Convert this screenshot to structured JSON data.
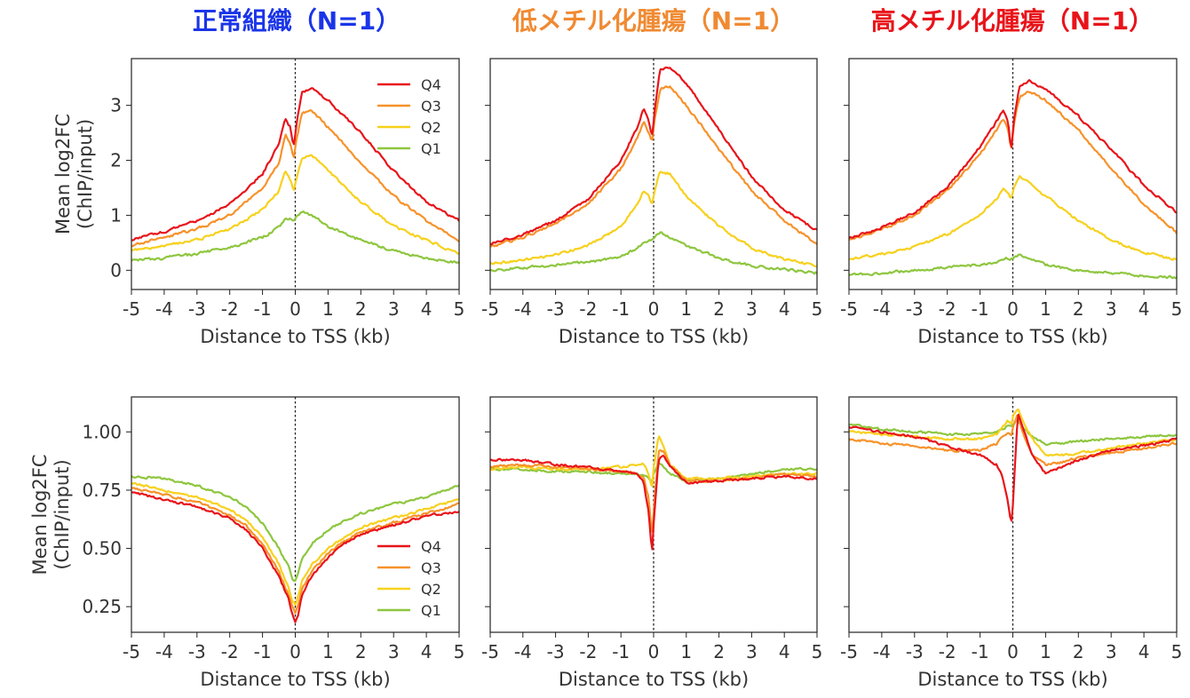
{
  "column_titles": [
    {
      "text": "正常組織（N=1）",
      "color": "#1a35e8"
    },
    {
      "text": "低メチル化腫瘍（N=1）",
      "color": "#f08a32"
    },
    {
      "text": "高メチル化腫瘍（N=1）",
      "color": "#e8141a"
    }
  ],
  "series_colors": {
    "Q4": "#e8141a",
    "Q3": "#f7922a",
    "Q2": "#f7d11e",
    "Q1": "#8ec63f"
  },
  "chart_data": [
    {
      "type": "line",
      "row": "top",
      "column": "正常組織（N=1）",
      "xlabel": "Distance to TSS (kb)",
      "ylabel": [
        "Mean log2FC",
        "(ChIP/input)"
      ],
      "xlim": [
        -5,
        5
      ],
      "ylim": [
        -0.35,
        3.85
      ],
      "xticks": [
        "-5",
        "-4",
        "-3",
        "-2",
        "-1",
        "0",
        "1",
        "2",
        "3",
        "4",
        "5"
      ],
      "yticks": [
        "0",
        "1",
        "2",
        "3"
      ],
      "legend": "top-right",
      "grid": false,
      "tss_line": true,
      "x": [
        -5,
        -4,
        -3,
        -2,
        -1,
        -0.5,
        -0.3,
        -0.15,
        -0.05,
        0.05,
        0.2,
        0.5,
        1,
        2,
        3,
        4,
        5
      ],
      "series": [
        {
          "name": "Q4",
          "values": [
            0.55,
            0.7,
            0.9,
            1.2,
            1.75,
            2.3,
            2.75,
            2.6,
            2.25,
            2.7,
            3.25,
            3.3,
            3.1,
            2.5,
            1.8,
            1.25,
            0.9
          ]
        },
        {
          "name": "Q3",
          "values": [
            0.45,
            0.6,
            0.75,
            1.0,
            1.5,
            1.95,
            2.45,
            2.3,
            2.05,
            2.4,
            2.85,
            2.92,
            2.6,
            1.95,
            1.35,
            0.9,
            0.52
          ]
        },
        {
          "name": "Q2",
          "values": [
            0.35,
            0.45,
            0.55,
            0.75,
            1.1,
            1.45,
            1.8,
            1.65,
            1.45,
            1.7,
            2.05,
            2.1,
            1.8,
            1.25,
            0.8,
            0.55,
            0.3
          ]
        },
        {
          "name": "Q1",
          "values": [
            0.18,
            0.22,
            0.3,
            0.42,
            0.6,
            0.78,
            0.92,
            0.95,
            0.9,
            1.0,
            1.08,
            1.0,
            0.8,
            0.55,
            0.35,
            0.22,
            0.13
          ]
        }
      ]
    },
    {
      "type": "line",
      "row": "top",
      "column": "低メチル化腫瘍（N=1）",
      "xlabel": "Distance to TSS (kb)",
      "ylabel": [],
      "xlim": [
        -5,
        5
      ],
      "ylim": [
        -0.35,
        3.85
      ],
      "xticks": [
        "-5",
        "-4",
        "-3",
        "-2",
        "-1",
        "0",
        "1",
        "2",
        "3",
        "4",
        "5"
      ],
      "legend": "none",
      "grid": false,
      "tss_line": true,
      "x": [
        -5,
        -4,
        -3,
        -2,
        -1,
        -0.5,
        -0.3,
        -0.15,
        -0.05,
        0.05,
        0.2,
        0.5,
        1,
        2,
        3,
        4,
        5
      ],
      "series": [
        {
          "name": "Q4",
          "values": [
            0.48,
            0.65,
            0.9,
            1.3,
            2.0,
            2.6,
            2.95,
            2.7,
            2.45,
            3.0,
            3.65,
            3.7,
            3.4,
            2.55,
            1.7,
            1.1,
            0.72
          ]
        },
        {
          "name": "Q3",
          "values": [
            0.42,
            0.6,
            0.85,
            1.2,
            1.85,
            2.4,
            2.7,
            2.5,
            2.35,
            2.8,
            3.3,
            3.35,
            3.0,
            2.2,
            1.45,
            0.9,
            0.48
          ]
        },
        {
          "name": "Q2",
          "values": [
            0.12,
            0.18,
            0.28,
            0.45,
            0.8,
            1.2,
            1.45,
            1.35,
            1.2,
            1.5,
            1.8,
            1.75,
            1.35,
            0.8,
            0.4,
            0.2,
            0.08
          ]
        },
        {
          "name": "Q1",
          "values": [
            0.0,
            0.05,
            0.1,
            0.15,
            0.25,
            0.4,
            0.5,
            0.55,
            0.55,
            0.62,
            0.68,
            0.6,
            0.45,
            0.22,
            0.08,
            0.02,
            -0.05
          ]
        }
      ]
    },
    {
      "type": "line",
      "row": "top",
      "column": "高メチル化腫瘍（N=1）",
      "xlabel": "Distance to TSS (kb)",
      "ylabel": [],
      "xlim": [
        -5,
        5
      ],
      "ylim": [
        -0.35,
        3.85
      ],
      "xticks": [
        "-5",
        "-4",
        "-3",
        "-2",
        "-1",
        "0",
        "1",
        "2",
        "3",
        "4",
        "5"
      ],
      "legend": "none",
      "grid": false,
      "tss_line": true,
      "x": [
        -5,
        -4,
        -3,
        -2,
        -1,
        -0.5,
        -0.3,
        -0.15,
        -0.05,
        0.05,
        0.2,
        0.5,
        1,
        2,
        3,
        4,
        5
      ],
      "series": [
        {
          "name": "Q4",
          "values": [
            0.58,
            0.78,
            1.05,
            1.5,
            2.25,
            2.7,
            2.9,
            2.7,
            2.2,
            2.8,
            3.35,
            3.45,
            3.3,
            2.8,
            2.2,
            1.55,
            1.05
          ]
        },
        {
          "name": "Q3",
          "values": [
            0.55,
            0.75,
            1.0,
            1.45,
            2.1,
            2.55,
            2.75,
            2.6,
            2.2,
            2.7,
            3.15,
            3.25,
            3.1,
            2.55,
            1.85,
            1.2,
            0.68
          ]
        },
        {
          "name": "Q2",
          "values": [
            0.2,
            0.3,
            0.42,
            0.65,
            1.0,
            1.3,
            1.48,
            1.4,
            1.3,
            1.55,
            1.7,
            1.6,
            1.35,
            0.9,
            0.55,
            0.32,
            0.2
          ]
        },
        {
          "name": "Q1",
          "values": [
            -0.08,
            -0.05,
            0.0,
            0.05,
            0.1,
            0.15,
            0.2,
            0.22,
            0.2,
            0.25,
            0.27,
            0.2,
            0.1,
            0.0,
            -0.05,
            -0.1,
            -0.13
          ]
        }
      ]
    },
    {
      "type": "line",
      "row": "bottom",
      "column": "正常組織（N=1）",
      "xlabel": "Distance to TSS (kb)",
      "ylabel": [
        "Mean log2FC",
        "(ChIP/input)"
      ],
      "xlim": [
        -5,
        5
      ],
      "ylim": [
        0.14,
        1.15
      ],
      "xticks": [
        "-5",
        "-4",
        "-3",
        "-2",
        "-1",
        "0",
        "1",
        "2",
        "3",
        "4",
        "5"
      ],
      "yticks": [
        "0.25",
        "0.50",
        "0.75",
        "1.00"
      ],
      "legend": "bottom-right",
      "grid": false,
      "tss_line": true,
      "x": [
        -5,
        -4,
        -3,
        -2,
        -1.5,
        -1,
        -0.5,
        -0.2,
        -0.1,
        0,
        0.1,
        0.2,
        0.5,
        1,
        1.5,
        2,
        3,
        4,
        5
      ],
      "series": [
        {
          "name": "Q4",
          "values": [
            0.74,
            0.71,
            0.68,
            0.63,
            0.58,
            0.5,
            0.38,
            0.28,
            0.22,
            0.18,
            0.22,
            0.3,
            0.38,
            0.46,
            0.52,
            0.56,
            0.6,
            0.64,
            0.66
          ]
        },
        {
          "name": "Q3",
          "values": [
            0.76,
            0.73,
            0.7,
            0.64,
            0.6,
            0.52,
            0.4,
            0.3,
            0.25,
            0.22,
            0.26,
            0.32,
            0.4,
            0.48,
            0.53,
            0.57,
            0.61,
            0.65,
            0.69
          ]
        },
        {
          "name": "Q2",
          "values": [
            0.78,
            0.75,
            0.72,
            0.67,
            0.62,
            0.55,
            0.43,
            0.33,
            0.28,
            0.26,
            0.3,
            0.36,
            0.43,
            0.5,
            0.55,
            0.59,
            0.63,
            0.67,
            0.71
          ]
        },
        {
          "name": "Q1",
          "values": [
            0.81,
            0.8,
            0.77,
            0.72,
            0.68,
            0.61,
            0.5,
            0.42,
            0.37,
            0.36,
            0.4,
            0.45,
            0.52,
            0.58,
            0.62,
            0.65,
            0.69,
            0.72,
            0.77
          ]
        }
      ]
    },
    {
      "type": "line",
      "row": "bottom",
      "column": "低メチル化腫瘍（N=1）",
      "xlabel": "Distance to TSS (kb)",
      "ylabel": [],
      "xlim": [
        -5,
        5
      ],
      "ylim": [
        0.14,
        1.15
      ],
      "xticks": [
        "-5",
        "-4",
        "-3",
        "-2",
        "-1",
        "0",
        "1",
        "2",
        "3",
        "4",
        "5"
      ],
      "legend": "none",
      "grid": false,
      "tss_line": true,
      "x": [
        -5,
        -4,
        -3,
        -2,
        -1,
        -0.5,
        -0.3,
        -0.15,
        -0.05,
        0,
        0.15,
        0.3,
        0.5,
        1,
        2,
        3,
        4,
        5
      ],
      "series": [
        {
          "name": "Q4",
          "values": [
            0.88,
            0.88,
            0.86,
            0.85,
            0.83,
            0.82,
            0.78,
            0.65,
            0.47,
            0.6,
            0.88,
            0.9,
            0.85,
            0.78,
            0.79,
            0.8,
            0.81,
            0.8
          ]
        },
        {
          "name": "Q3",
          "values": [
            0.85,
            0.86,
            0.85,
            0.84,
            0.83,
            0.82,
            0.8,
            0.72,
            0.55,
            0.65,
            0.92,
            0.92,
            0.86,
            0.79,
            0.79,
            0.8,
            0.82,
            0.81
          ]
        },
        {
          "name": "Q2",
          "values": [
            0.84,
            0.85,
            0.84,
            0.84,
            0.85,
            0.86,
            0.86,
            0.82,
            0.75,
            0.85,
            0.98,
            0.94,
            0.86,
            0.8,
            0.8,
            0.81,
            0.82,
            0.82
          ]
        },
        {
          "name": "Q1",
          "values": [
            0.84,
            0.84,
            0.83,
            0.83,
            0.82,
            0.82,
            0.81,
            0.8,
            0.79,
            0.82,
            0.87,
            0.85,
            0.82,
            0.79,
            0.8,
            0.82,
            0.84,
            0.84
          ]
        }
      ]
    },
    {
      "type": "line",
      "row": "bottom",
      "column": "高メチル化腫瘍（N=1）",
      "xlabel": "Distance to TSS (kb)",
      "ylabel": [],
      "xlim": [
        -5,
        5
      ],
      "ylim": [
        0.14,
        1.15
      ],
      "xticks": [
        "-5",
        "-4",
        "-3",
        "-2",
        "-1",
        "0",
        "1",
        "2",
        "3",
        "4",
        "5"
      ],
      "legend": "none",
      "grid": false,
      "tss_line": true,
      "x": [
        -5,
        -4,
        -3,
        -2,
        -1,
        -0.5,
        -0.3,
        -0.15,
        -0.05,
        0,
        0.15,
        0.3,
        0.6,
        1,
        1.5,
        2,
        3,
        4,
        5
      ],
      "series": [
        {
          "name": "Q4",
          "values": [
            1.02,
            1.0,
            0.98,
            0.94,
            0.9,
            0.86,
            0.8,
            0.7,
            0.6,
            0.68,
            1.08,
            1.02,
            0.9,
            0.82,
            0.85,
            0.88,
            0.92,
            0.94,
            0.97
          ]
        },
        {
          "name": "Q3",
          "values": [
            0.97,
            0.95,
            0.94,
            0.92,
            0.92,
            0.95,
            0.98,
            1.0,
            0.98,
            1.02,
            1.08,
            1.0,
            0.9,
            0.86,
            0.87,
            0.89,
            0.91,
            0.93,
            0.95
          ]
        },
        {
          "name": "Q2",
          "values": [
            1.0,
            0.99,
            0.98,
            0.97,
            0.97,
            0.99,
            1.02,
            1.05,
            1.03,
            1.06,
            1.1,
            1.05,
            0.97,
            0.9,
            0.9,
            0.91,
            0.93,
            0.95,
            0.97
          ]
        },
        {
          "name": "Q1",
          "values": [
            1.03,
            1.01,
            1.0,
            0.99,
            0.99,
            1.0,
            1.01,
            1.03,
            1.02,
            1.03,
            1.05,
            1.02,
            0.98,
            0.95,
            0.95,
            0.96,
            0.97,
            0.98,
            0.99
          ]
        }
      ]
    }
  ]
}
